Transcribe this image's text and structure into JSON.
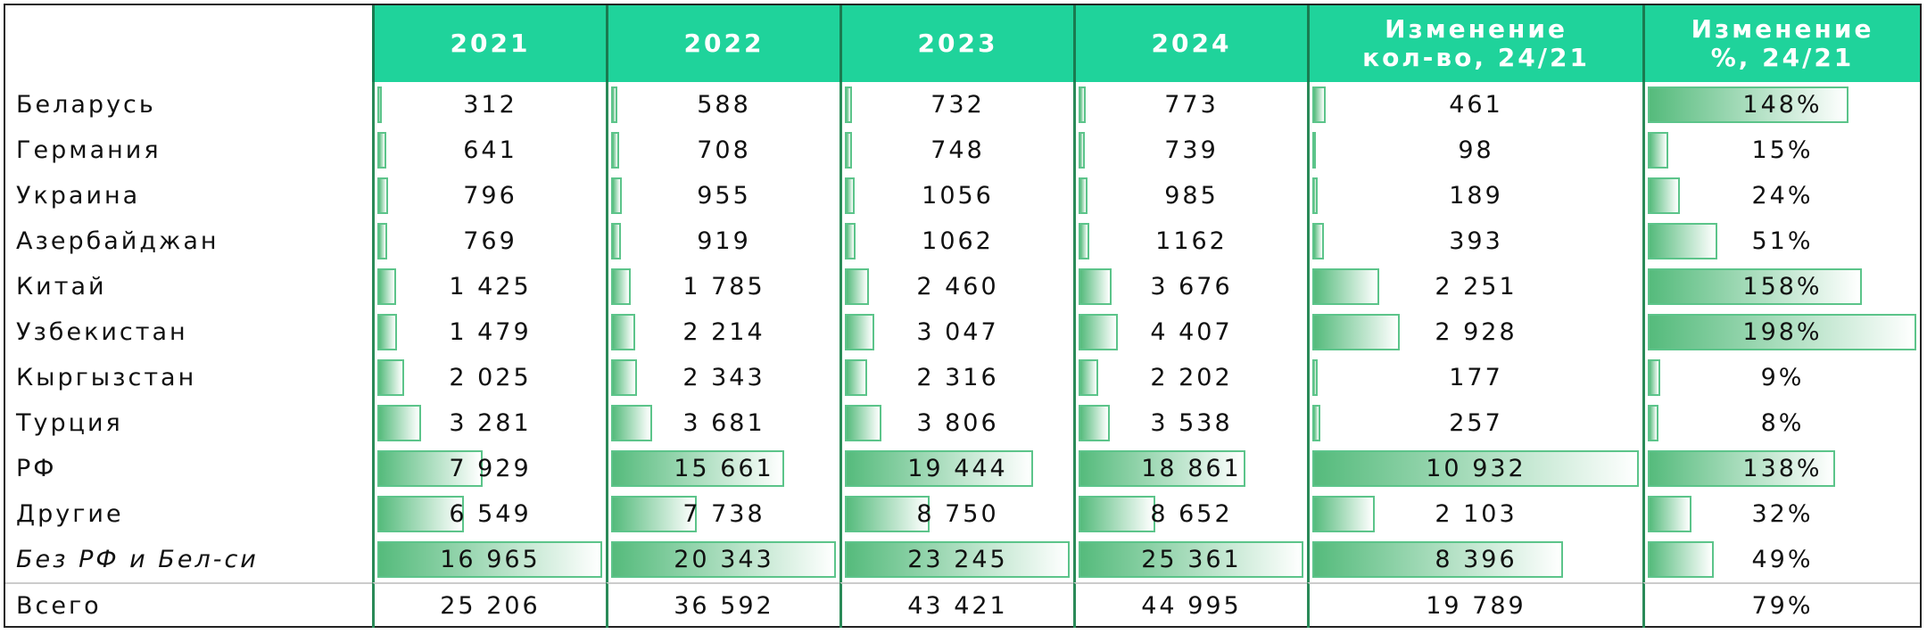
{
  "table": {
    "columns": [
      "2021",
      "2022",
      "2023",
      "2024",
      "Изменение\nкол-во, 24/21",
      "Изменение\n%, 24/21"
    ],
    "rows": [
      {
        "label": "Беларусь",
        "cells": [
          "312",
          "588",
          "732",
          "773",
          "461",
          "148%"
        ]
      },
      {
        "label": "Германия",
        "cells": [
          "641",
          "708",
          "748",
          "739",
          "98",
          "15%"
        ]
      },
      {
        "label": "Украина",
        "cells": [
          "796",
          "955",
          "1056",
          "985",
          "189",
          "24%"
        ]
      },
      {
        "label": "Азербайджан",
        "cells": [
          "769",
          "919",
          "1062",
          "1162",
          "393",
          "51%"
        ]
      },
      {
        "label": "Китай",
        "cells": [
          "1 425",
          "1 785",
          "2 460",
          "3 676",
          "2 251",
          "158%"
        ]
      },
      {
        "label": "Узбекистан",
        "cells": [
          "1 479",
          "2 214",
          "3 047",
          "4 407",
          "2 928",
          "198%"
        ]
      },
      {
        "label": "Кыргызстан",
        "cells": [
          "2 025",
          "2 343",
          "2 316",
          "2 202",
          "177",
          "9%"
        ]
      },
      {
        "label": "Турция",
        "cells": [
          "3 281",
          "3 681",
          "3 806",
          "3 538",
          "257",
          "8%"
        ]
      },
      {
        "label": "РФ",
        "cells": [
          "7 929",
          "15 661",
          "19 444",
          "18 861",
          "10 932",
          "138%"
        ]
      },
      {
        "label": "Другие",
        "cells": [
          "6 549",
          "7 738",
          "8 750",
          "8 652",
          "2 103",
          "32%"
        ]
      },
      {
        "label": "Без РФ и Бел-си",
        "cells": [
          "16 965",
          "20 343",
          "23 245",
          "25 361",
          "8 396",
          "49%"
        ]
      },
      {
        "label": "Всего",
        "cells": [
          "25 206",
          "36 592",
          "43 421",
          "44 995",
          "19 789",
          "79%"
        ]
      }
    ]
  }
}
